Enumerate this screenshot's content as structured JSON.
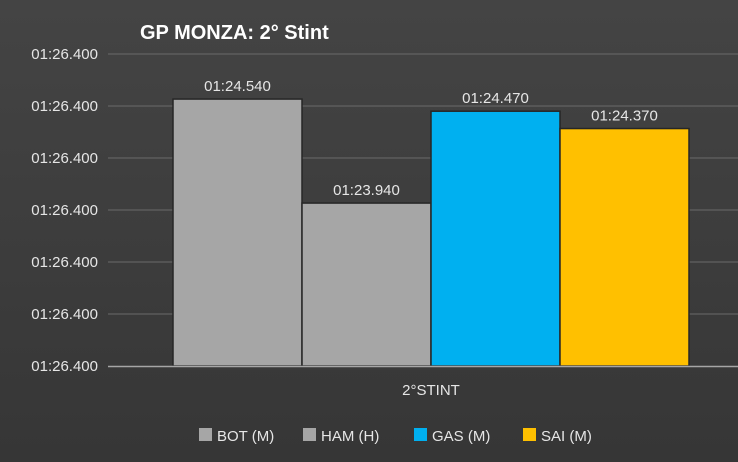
{
  "chart_data": {
    "type": "bar",
    "title": "GP MONZA: 2° Stint",
    "categories": [
      "2°STINT"
    ],
    "y_tick_labels": [
      "01:26.400",
      "01:26.400",
      "01:26.400",
      "01:26.400",
      "01:26.400",
      "01:26.400",
      "01:26.400"
    ],
    "ylim": [
      83.0,
      84.8
    ],
    "grid": true,
    "legend_position": "bottom",
    "series": [
      {
        "name": "BOT (M)",
        "value": 84.54,
        "label": "01:24.540",
        "color": "#a6a6a6"
      },
      {
        "name": "HAM (H)",
        "value": 83.94,
        "label": "01:23.940",
        "color": "#a6a6a6"
      },
      {
        "name": "GAS (M)",
        "value": 84.47,
        "label": "01:24.470",
        "color": "#00b0f0"
      },
      {
        "name": "SAI (M)",
        "value": 84.37,
        "label": "01:24.370",
        "color": "#ffc000"
      }
    ]
  }
}
